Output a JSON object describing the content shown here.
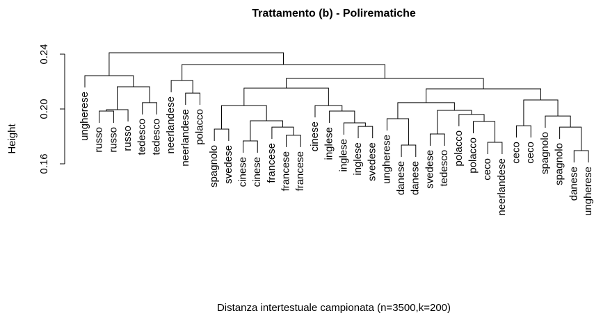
{
  "chart_data": {
    "type": "dendrogram",
    "title": "Trattamento (b) - Polirematiche",
    "xlabel": "Distanza intertestuale campionata (n=3500,k=200)",
    "ylabel": "Height",
    "ylim": [
      0.16,
      0.24
    ],
    "yticks": [
      {
        "value": 0.16,
        "label": "0.16"
      },
      {
        "value": 0.2,
        "label": "0.20"
      },
      {
        "value": 0.24,
        "label": "0.24"
      }
    ],
    "color": "#000000",
    "labels": [
      "ungherese",
      "russo",
      "russo",
      "russo",
      "tedesco",
      "tedesco",
      "neerlandese",
      "neerlandese",
      "polacco",
      "spagnolo",
      "svedese",
      "cinese",
      "cinese",
      "francese",
      "francese",
      "francese",
      "cinese",
      "inglese",
      "inglese",
      "inglese",
      "svedese",
      "ungherese",
      "danese",
      "danese",
      "svedese",
      "tedesco",
      "polacco",
      "polacco",
      "ceco",
      "neerlandese",
      "ceco",
      "ceco",
      "spagnolo",
      "spagnolo",
      "danese",
      "ungherese"
    ],
    "merge": [
      [
        -2,
        -3
      ],
      [
        -4,
        1
      ],
      [
        -5,
        -6
      ],
      [
        2,
        3
      ],
      [
        -1,
        4
      ],
      [
        -8,
        -9
      ],
      [
        -7,
        6
      ],
      [
        -10,
        -11
      ],
      [
        -12,
        -13
      ],
      [
        -15,
        -16
      ],
      [
        -14,
        10
      ],
      [
        9,
        11
      ],
      [
        8,
        12
      ],
      [
        -20,
        -21
      ],
      [
        -19,
        14
      ],
      [
        -18,
        15
      ],
      [
        -17,
        16
      ],
      [
        13,
        17
      ],
      [
        -23,
        -24
      ],
      [
        -22,
        19
      ],
      [
        -25,
        -26
      ],
      [
        -29,
        -30
      ],
      [
        -28,
        22
      ],
      [
        -27,
        23
      ],
      [
        21,
        24
      ],
      [
        20,
        25
      ],
      [
        -31,
        -32
      ],
      [
        -35,
        -36
      ],
      [
        -34,
        28
      ],
      [
        -33,
        29
      ],
      [
        27,
        30
      ],
      [
        26,
        31
      ],
      [
        18,
        32
      ],
      [
        7,
        33
      ],
      [
        5,
        34
      ]
    ],
    "height": [
      0.1985,
      0.1995,
      0.2046,
      0.2162,
      0.2243,
      0.2116,
      0.2208,
      0.1853,
      0.1767,
      0.1808,
      0.1868,
      0.1914,
      0.2025,
      0.1873,
      0.1899,
      0.1985,
      0.2025,
      0.2152,
      0.1737,
      0.1929,
      0.1818,
      0.1757,
      0.1909,
      0.196,
      0.199,
      0.2046,
      0.1878,
      0.1696,
      0.1868,
      0.1949,
      0.2066,
      0.2147,
      0.2223,
      0.2324,
      0.241
    ]
  }
}
